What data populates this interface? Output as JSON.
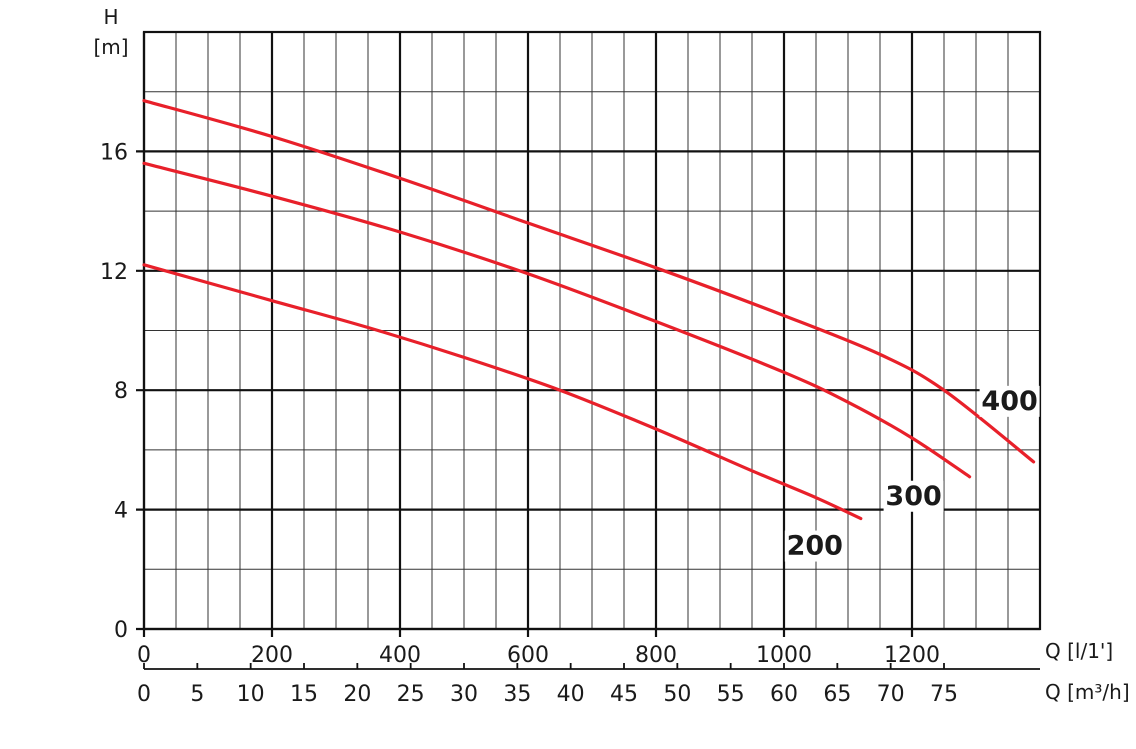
{
  "chart_data": {
    "type": "line",
    "y_axis": {
      "symbol": "H",
      "unit": "[m]",
      "range": [
        0,
        20
      ],
      "major_ticks": [
        0,
        4,
        8,
        12,
        16
      ],
      "minor_step": 2
    },
    "x_axis": {
      "title": "Q [l/1']",
      "range": [
        0,
        1400
      ],
      "major_ticks": [
        0,
        200,
        400,
        600,
        800,
        1000,
        1200
      ],
      "minor_step": 50
    },
    "x_axis_secondary": {
      "title": "Q [m³/h]",
      "ticks": [
        0,
        5,
        10,
        15,
        20,
        25,
        30,
        35,
        40,
        45,
        50,
        55,
        60,
        65,
        70,
        75
      ],
      "factor_per_l_min": 0.06
    },
    "grid": true,
    "series": [
      {
        "name": "200",
        "color": "#e8202a",
        "x": [
          0,
          200,
          350,
          500,
          650,
          800,
          950,
          1050,
          1120
        ],
        "y": [
          12.2,
          11.0,
          10.1,
          9.1,
          8.0,
          6.7,
          5.3,
          4.4,
          3.7
        ]
      },
      {
        "name": "300",
        "color": "#e8202a",
        "x": [
          0,
          200,
          400,
          600,
          800,
          1000,
          1100,
          1200,
          1290
        ],
        "y": [
          15.6,
          14.5,
          13.3,
          11.9,
          10.3,
          8.6,
          7.6,
          6.4,
          5.1
        ]
      },
      {
        "name": "400",
        "color": "#e8202a",
        "x": [
          0,
          200,
          400,
          600,
          800,
          1000,
          1150,
          1250,
          1390
        ],
        "y": [
          17.7,
          16.5,
          15.1,
          13.6,
          12.1,
          10.5,
          9.2,
          8.0,
          5.6
        ]
      }
    ]
  }
}
